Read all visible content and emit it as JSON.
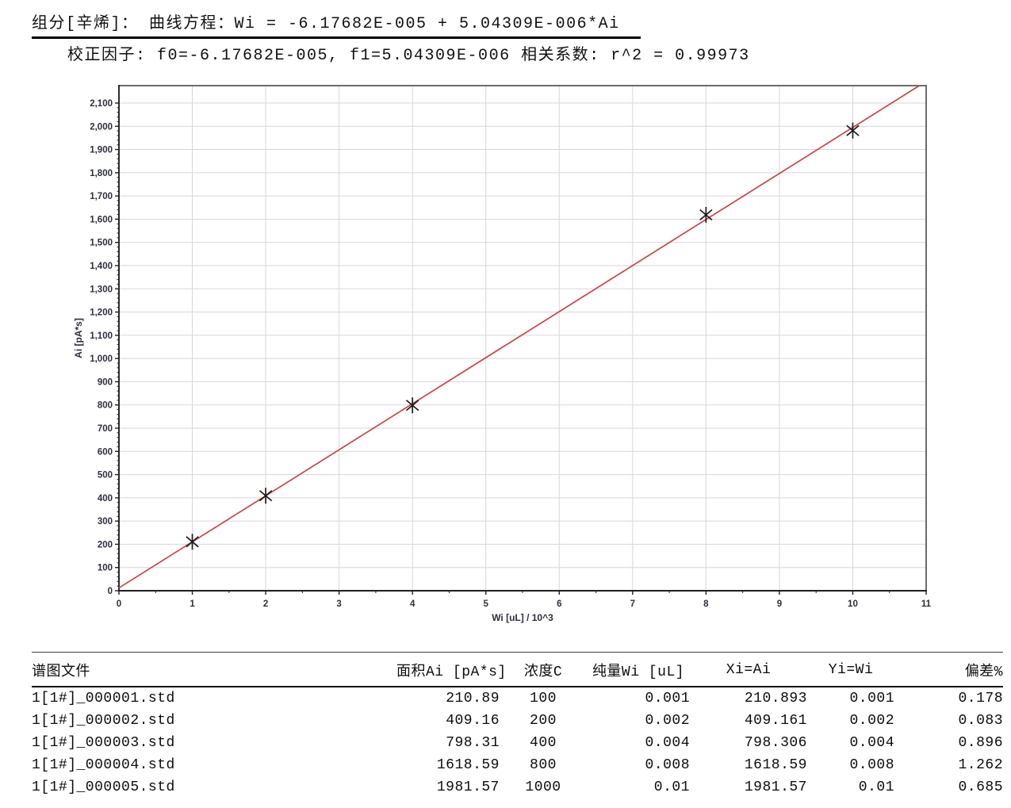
{
  "header": {
    "line1": "组分[辛烯]：  曲线方程：Wi = -6.17682E-005 + 5.04309E-006*Ai",
    "line2": "校正因子: f0=-6.17682E-005, f1=5.04309E-006  相关系数: r^2 = 0.99973",
    "component": "辛烯",
    "equation": "Wi = -6.17682E-005 + 5.04309E-006*Ai",
    "f0": "-6.17682E-005",
    "f1": "5.04309E-006",
    "r_squared": "0.99973"
  },
  "chart_data": {
    "type": "scatter",
    "title": "",
    "xlabel": "Wi [uL] / 10^3",
    "ylabel": "Ai [pA*s]",
    "x": [
      1,
      2,
      4,
      8,
      10
    ],
    "y": [
      210.893,
      409.161,
      798.306,
      1618.59,
      1981.57
    ],
    "fit_line": {
      "intercept": 12.25,
      "slope": 198.29,
      "equation": "Ai = 198.29*x + 12.25"
    },
    "xlim": [
      0,
      11
    ],
    "ylim": [
      0,
      2175
    ],
    "x_major_step": 1,
    "x_minor_step": 0.5,
    "y_major_step": 100,
    "y_minor_step": 20,
    "y_tick_max": 2100,
    "grid": true,
    "legend_position": "none",
    "colors": {
      "line": "#c94548",
      "marker": "#1c1c1c",
      "grid": "#d7d7d7",
      "frame": "#3c3c3c",
      "axis": "#1f1f1f",
      "tick_text": "#2e2e40"
    }
  },
  "table": {
    "columns": [
      "谱图文件",
      "面积Ai [pA*s]",
      "浓度C",
      "纯量Wi [uL]",
      "Xi=Ai",
      "Yi=Wi",
      "偏差%"
    ],
    "rows": [
      [
        "1[1#]_000001.std",
        "210.89",
        "100",
        "0.001",
        "210.893",
        "0.001",
        "0.178"
      ],
      [
        "1[1#]_000002.std",
        "409.16",
        "200",
        "0.002",
        "409.161",
        "0.002",
        "0.083"
      ],
      [
        "1[1#]_000003.std",
        "798.31",
        "400",
        "0.004",
        "798.306",
        "0.004",
        "0.896"
      ],
      [
        "1[1#]_000004.std",
        "1618.59",
        "800",
        "0.008",
        "1618.59",
        "0.008",
        "1.262"
      ],
      [
        "1[1#]_000005.std",
        "1981.57",
        "1000",
        "0.01",
        "1981.57",
        "0.01",
        "0.685"
      ]
    ]
  }
}
